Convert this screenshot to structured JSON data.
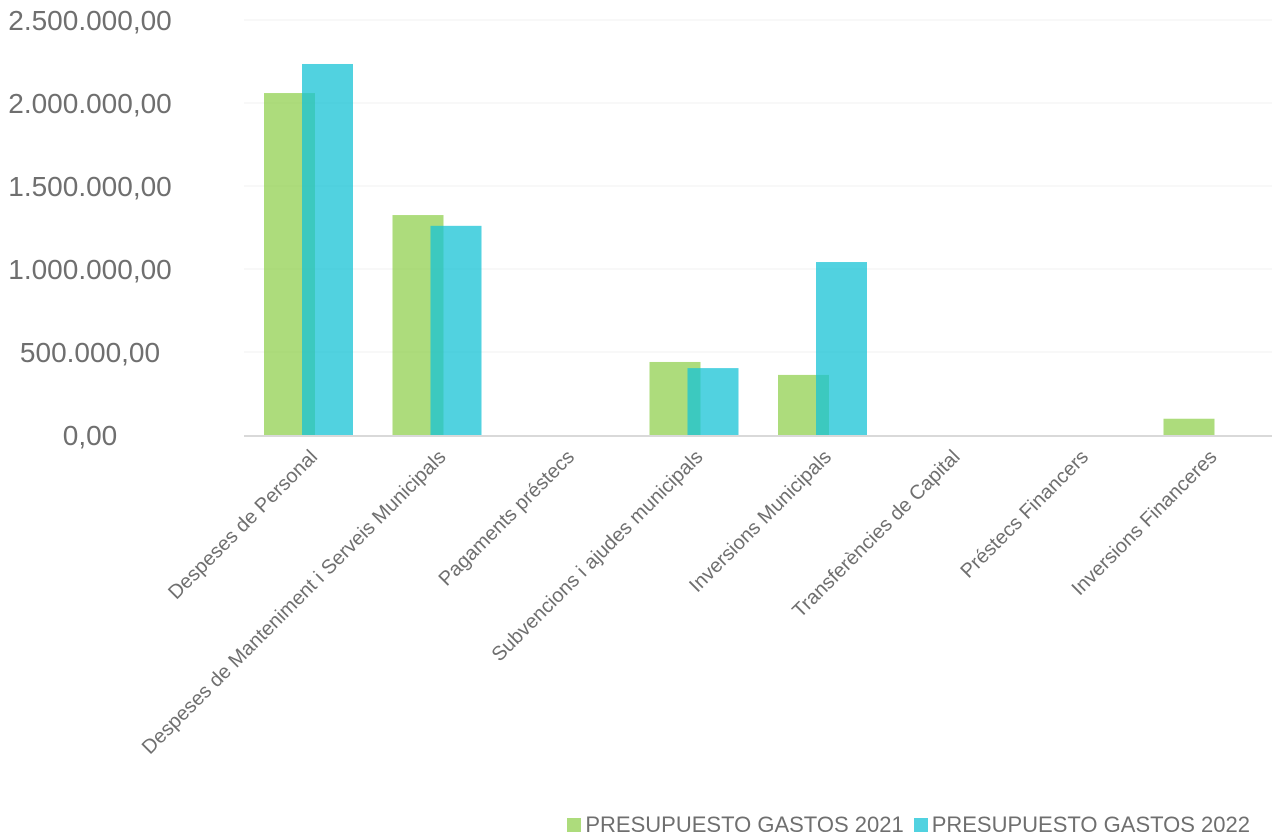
{
  "chart_data": {
    "type": "bar",
    "categories": [
      "Despeses de Personal",
      "Despeses de Manteniment i Serveis Municipals",
      "Pagaments préstecs",
      "Subvencions i ajudes municipals",
      "Inversions Municipals",
      "Transferències de Capital",
      "Préstecs Financers",
      "Inversions Financeres"
    ],
    "series": [
      {
        "name": "PRESUPUESTO GASTOS 2021",
        "color": "#92d050",
        "values": [
          2060000,
          1325000,
          0,
          440000,
          362000,
          0,
          0,
          98000
        ]
      },
      {
        "name": "PRESUPUESTO GASTOS 2022",
        "color": "#17c3d6",
        "values": [
          2235000,
          1260000,
          0,
          403000,
          1042000,
          0,
          0,
          0
        ]
      }
    ],
    "ylim": [
      0,
      2500000
    ],
    "yticks": [
      "0,00",
      "500.000,00",
      "1.000.000,00",
      "1.500.000,00",
      "2.000.000,00",
      "2.500.000,00"
    ],
    "grid": true,
    "legend_position": "bottom-right"
  }
}
